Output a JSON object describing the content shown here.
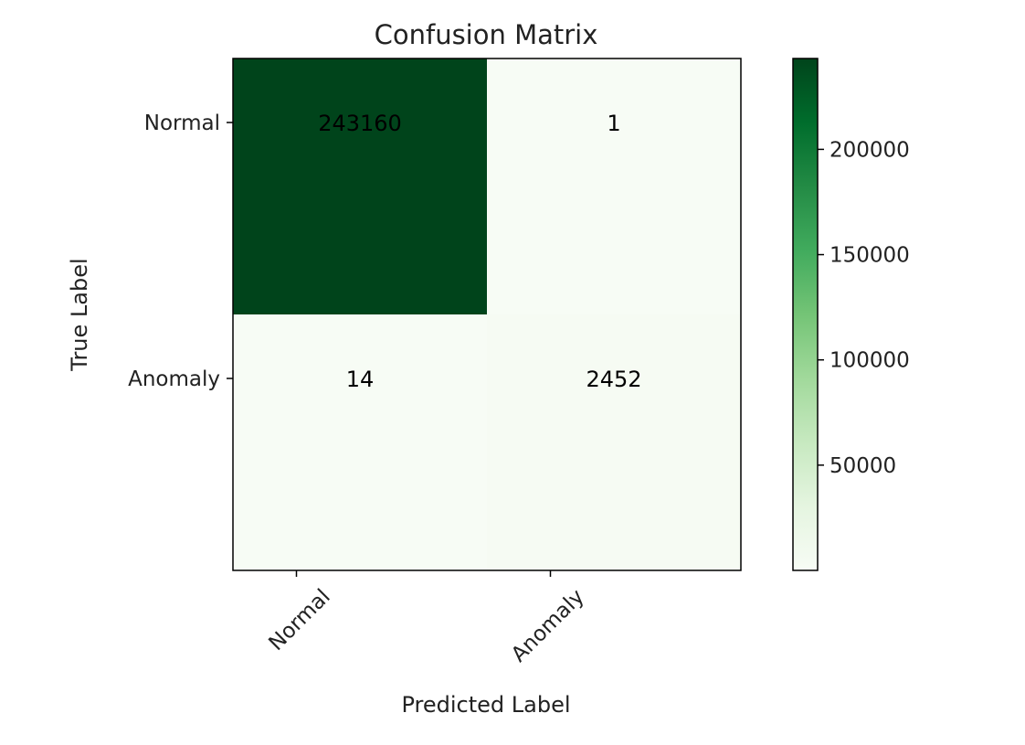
{
  "chart_data": {
    "type": "heatmap",
    "title": "Confusion Matrix",
    "xlabel": "Predicted Label",
    "ylabel": "True Label",
    "x_categories": [
      "Normal",
      "Anomaly"
    ],
    "y_categories": [
      "Normal",
      "Anomaly"
    ],
    "values": [
      [
        243160,
        1
      ],
      [
        14,
        2452
      ]
    ],
    "cell_labels": [
      [
        "243160",
        "1"
      ],
      [
        "14",
        "2452"
      ]
    ],
    "colormap": "Greens",
    "color_low": "#f7fcf5",
    "color_high": "#00441b",
    "colorbar": {
      "range": [
        1,
        243160
      ],
      "ticks": [
        50000,
        100000,
        150000,
        200000
      ],
      "tick_labels": [
        "50000",
        "100000",
        "150000",
        "200000"
      ]
    },
    "x_tick_rotation_deg": 45,
    "grid": false
  }
}
